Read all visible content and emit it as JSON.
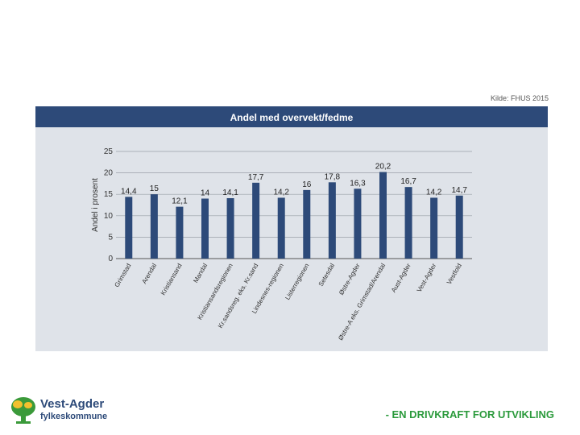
{
  "source_note": "Kilde: FHUS 2015",
  "footer": {
    "org_line1": "Vest-Agder",
    "org_line2": "fylkeskommune",
    "slogan": "- EN DRIVKRAFT FOR UTVIKLING"
  },
  "colors": {
    "bar": "#2d4a79",
    "header": "#2d4a79",
    "panel": "#dfe3e9",
    "slogan": "#2b9a3c"
  },
  "chart_data": {
    "type": "bar",
    "title": "Andel med overvekt/fedme",
    "ylabel": "Andel i prosent",
    "xlabel": "",
    "ylim": [
      0,
      25
    ],
    "yticks": [
      0,
      5,
      10,
      15,
      20,
      25
    ],
    "grid": true,
    "categories": [
      "Grimstad",
      "Arendal",
      "Kristiansand",
      "Mandal",
      "Kristiansandsregionen",
      "Kr.sandsreg. eks. Kr.sand",
      "Lindesnes-regionen",
      "Listerregionen",
      "Setesdal",
      "Østre-Agder",
      "Østre-A eks. Grimstad/Arendal",
      "Aust-Agder",
      "Vest-Agder",
      "Vestfold"
    ],
    "values": [
      14.4,
      15,
      12.1,
      14,
      14.1,
      17.7,
      14.2,
      16,
      17.8,
      16.3,
      20.2,
      16.7,
      14.2,
      14.7
    ],
    "value_labels": [
      "14,4",
      "15",
      "12,1",
      "14",
      "14,1",
      "17,7",
      "14,2",
      "16",
      "17,8",
      "16,3",
      "20,2",
      "16,7",
      "14,2",
      "14,7"
    ]
  }
}
